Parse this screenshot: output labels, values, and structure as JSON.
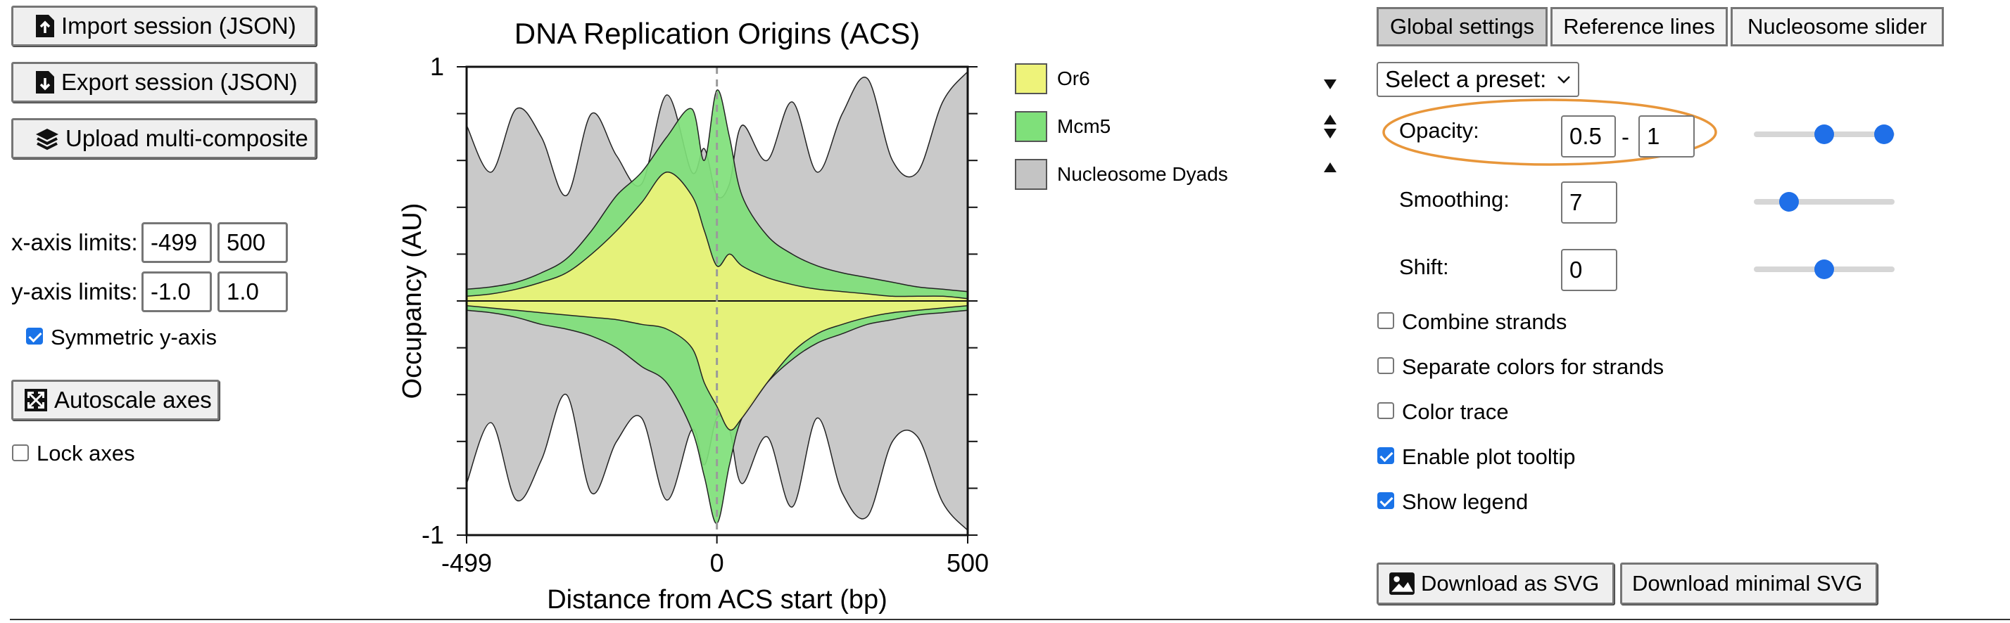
{
  "left_panel": {
    "import_label": "Import session (JSON)",
    "export_label": "Export session (JSON)",
    "upload_label": "Upload multi-composite",
    "x_axis_label": "x-axis limits:",
    "x_min": "-499",
    "x_max": "500",
    "y_axis_label": "y-axis limits:",
    "y_min": "-1.0",
    "y_max": "1.0",
    "symmetric_label": "Symmetric y-axis",
    "symmetric_checked": true,
    "autoscale_label": "Autoscale axes",
    "lock_label": "Lock axes",
    "lock_checked": false
  },
  "chart_data": {
    "type": "area",
    "title": "DNA Replication Origins (ACS)",
    "xlabel": "Distance from ACS start (bp)",
    "ylabel": "Occupancy (AU)",
    "xlim": [
      -499,
      500
    ],
    "ylim": [
      -1,
      1
    ],
    "x_ticks": [
      "-499",
      "0",
      "500"
    ],
    "y_ticks": [
      "1",
      "-1"
    ],
    "reference_line_x": 0,
    "x": [
      -499,
      -450,
      -400,
      -350,
      -300,
      -250,
      -200,
      -150,
      -100,
      -50,
      -25,
      0,
      25,
      50,
      100,
      150,
      200,
      250,
      300,
      350,
      400,
      450,
      500
    ],
    "series": [
      {
        "name": "Nucleosome Dyads",
        "color": "#c4c4c4",
        "forward": [
          0.75,
          0.55,
          0.82,
          0.7,
          0.45,
          0.8,
          0.62,
          0.5,
          0.88,
          0.55,
          0.65,
          0.45,
          0.5,
          0.75,
          0.6,
          0.85,
          0.55,
          0.8,
          0.95,
          0.6,
          0.55,
          0.85,
          0.98
        ],
        "reverse": [
          -0.78,
          -0.52,
          -0.85,
          -0.68,
          -0.4,
          -0.82,
          -0.6,
          -0.5,
          -0.85,
          -0.55,
          -0.7,
          -0.5,
          -0.55,
          -0.78,
          -0.58,
          -0.88,
          -0.5,
          -0.82,
          -0.92,
          -0.6,
          -0.58,
          -0.86,
          -0.98
        ]
      },
      {
        "name": "Mcm5",
        "color": "#7fe07a",
        "forward": [
          0.05,
          0.06,
          0.08,
          0.12,
          0.18,
          0.3,
          0.45,
          0.55,
          0.7,
          0.82,
          0.6,
          0.9,
          0.7,
          0.45,
          0.28,
          0.2,
          0.15,
          0.12,
          0.1,
          0.08,
          0.06,
          0.05,
          0.04
        ],
        "reverse": [
          -0.04,
          -0.05,
          -0.07,
          -0.1,
          -0.12,
          -0.15,
          -0.2,
          -0.28,
          -0.35,
          -0.55,
          -0.75,
          -0.95,
          -0.7,
          -0.5,
          -0.35,
          -0.25,
          -0.18,
          -0.14,
          -0.1,
          -0.08,
          -0.06,
          -0.05,
          -0.04
        ]
      },
      {
        "name": "Or6",
        "color": "#eef37a",
        "forward": [
          0.02,
          0.03,
          0.05,
          0.08,
          0.12,
          0.2,
          0.3,
          0.42,
          0.55,
          0.45,
          0.3,
          0.15,
          0.2,
          0.15,
          0.1,
          0.07,
          0.05,
          0.04,
          0.03,
          0.02,
          0.02,
          0.02,
          0.01
        ],
        "reverse": [
          -0.02,
          -0.03,
          -0.04,
          -0.05,
          -0.06,
          -0.07,
          -0.08,
          -0.1,
          -0.12,
          -0.2,
          -0.35,
          -0.45,
          -0.55,
          -0.5,
          -0.35,
          -0.22,
          -0.14,
          -0.1,
          -0.07,
          -0.05,
          -0.04,
          -0.03,
          -0.02
        ]
      }
    ]
  },
  "legend": {
    "items": [
      {
        "label": "Or6",
        "color": "#eef37a"
      },
      {
        "label": "Mcm5",
        "color": "#7fe07a"
      },
      {
        "label": "Nucleosome Dyads",
        "color": "#c4c4c4"
      }
    ]
  },
  "right_panel": {
    "tabs": [
      "Global settings",
      "Reference lines",
      "Nucleosome slider"
    ],
    "active_tab": "Global settings",
    "preset_label": "Select a preset:",
    "opacity_label": "Opacity:",
    "opacity_min": "0.5",
    "opacity_max": "1",
    "opacity_dash": "-",
    "smoothing_label": "Smoothing:",
    "smoothing_value": "7",
    "shift_label": "Shift:",
    "shift_value": "0",
    "slider_levels": {
      "opacity_low": 0.5,
      "opacity_high": 1.0,
      "smoothing": 0.25,
      "shift": 0.5
    },
    "checkboxes": [
      {
        "label": "Combine strands",
        "checked": false
      },
      {
        "label": "Separate colors for strands",
        "checked": false
      },
      {
        "label": "Color trace",
        "checked": false
      },
      {
        "label": "Enable plot tooltip",
        "checked": true
      },
      {
        "label": "Show legend",
        "checked": true
      }
    ],
    "download_svg_label": "Download as SVG",
    "download_minimal_label": "Download minimal SVG",
    "highlight_color": "#e8963a",
    "accent_color": "#1f6fe8"
  }
}
